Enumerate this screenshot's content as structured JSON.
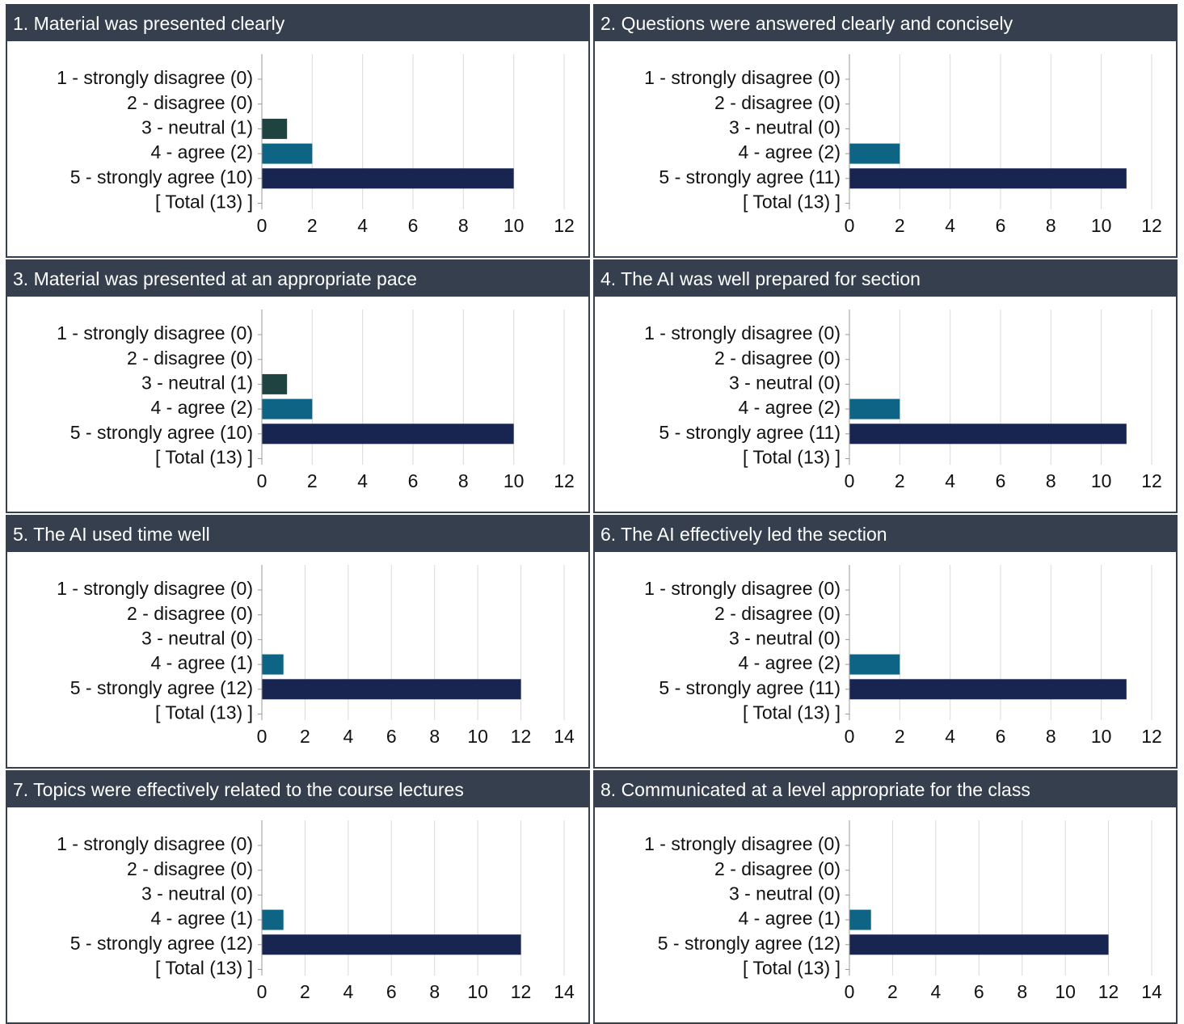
{
  "colors": {
    "header_bg": "#353f4d",
    "header_text": "#ffffff",
    "bar_neutral": "#1e4341",
    "bar_agree": "#0e6484",
    "bar_strongly_agree": "#172550",
    "grid": "#d9d9d9"
  },
  "chart_data": [
    {
      "type": "bar",
      "orientation": "horizontal",
      "title": "1. Material was presented clearly",
      "categories": [
        "1 - strongly disagree (0)",
        "2 - disagree (0)",
        "3 - neutral (1)",
        "4 - agree (2)",
        "5 - strongly agree (10)",
        "[ Total (13) ]"
      ],
      "values": [
        0,
        0,
        1,
        2,
        10,
        null
      ],
      "xlim": [
        0,
        12
      ],
      "xticks": [
        "0",
        "2",
        "4",
        "6",
        "8",
        "10",
        "12"
      ],
      "grid": true
    },
    {
      "type": "bar",
      "orientation": "horizontal",
      "title": "2. Questions were answered clearly and concisely",
      "categories": [
        "1 - strongly disagree (0)",
        "2 - disagree (0)",
        "3 - neutral (0)",
        "4 - agree (2)",
        "5 - strongly agree (11)",
        "[ Total (13) ]"
      ],
      "values": [
        0,
        0,
        0,
        2,
        11,
        null
      ],
      "xlim": [
        0,
        12
      ],
      "xticks": [
        "0",
        "2",
        "4",
        "6",
        "8",
        "10",
        "12"
      ],
      "grid": true
    },
    {
      "type": "bar",
      "orientation": "horizontal",
      "title": "3. Material was presented at an appropriate pace",
      "categories": [
        "1 - strongly disagree (0)",
        "2 - disagree (0)",
        "3 - neutral (1)",
        "4 - agree (2)",
        "5 - strongly agree (10)",
        "[ Total (13) ]"
      ],
      "values": [
        0,
        0,
        1,
        2,
        10,
        null
      ],
      "xlim": [
        0,
        12
      ],
      "xticks": [
        "0",
        "2",
        "4",
        "6",
        "8",
        "10",
        "12"
      ],
      "grid": true
    },
    {
      "type": "bar",
      "orientation": "horizontal",
      "title": "4. The AI was well prepared for section",
      "categories": [
        "1 - strongly disagree (0)",
        "2 - disagree (0)",
        "3 - neutral (0)",
        "4 - agree (2)",
        "5 - strongly agree (11)",
        "[ Total (13) ]"
      ],
      "values": [
        0,
        0,
        0,
        2,
        11,
        null
      ],
      "xlim": [
        0,
        12
      ],
      "xticks": [
        "0",
        "2",
        "4",
        "6",
        "8",
        "10",
        "12"
      ],
      "grid": true
    },
    {
      "type": "bar",
      "orientation": "horizontal",
      "title": "5. The AI used time well",
      "categories": [
        "1 - strongly disagree (0)",
        "2 - disagree (0)",
        "3 - neutral (0)",
        "4 - agree (1)",
        "5 - strongly agree (12)",
        "[ Total (13) ]"
      ],
      "values": [
        0,
        0,
        0,
        1,
        12,
        null
      ],
      "xlim": [
        0,
        14
      ],
      "xticks": [
        "0",
        "2",
        "4",
        "6",
        "8",
        "10",
        "12",
        "14"
      ],
      "grid": true
    },
    {
      "type": "bar",
      "orientation": "horizontal",
      "title": "6. The AI effectively led the section",
      "categories": [
        "1 - strongly disagree (0)",
        "2 - disagree (0)",
        "3 - neutral (0)",
        "4 - agree (2)",
        "5 - strongly agree (11)",
        "[ Total (13) ]"
      ],
      "values": [
        0,
        0,
        0,
        2,
        11,
        null
      ],
      "xlim": [
        0,
        12
      ],
      "xticks": [
        "0",
        "2",
        "4",
        "6",
        "8",
        "10",
        "12"
      ],
      "grid": true
    },
    {
      "type": "bar",
      "orientation": "horizontal",
      "title": "7. Topics were effectively related to the course lectures",
      "categories": [
        "1 - strongly disagree (0)",
        "2 - disagree (0)",
        "3 - neutral (0)",
        "4 - agree (1)",
        "5 - strongly agree (12)",
        "[ Total (13) ]"
      ],
      "values": [
        0,
        0,
        0,
        1,
        12,
        null
      ],
      "xlim": [
        0,
        14
      ],
      "xticks": [
        "0",
        "2",
        "4",
        "6",
        "8",
        "10",
        "12",
        "14"
      ],
      "grid": true
    },
    {
      "type": "bar",
      "orientation": "horizontal",
      "title": "8. Communicated at a level appropriate for the class",
      "categories": [
        "1 - strongly disagree (0)",
        "2 - disagree (0)",
        "3 - neutral (0)",
        "4 - agree (1)",
        "5 - strongly agree (12)",
        "[ Total (13) ]"
      ],
      "values": [
        0,
        0,
        0,
        1,
        12,
        null
      ],
      "xlim": [
        0,
        14
      ],
      "xticks": [
        "0",
        "2",
        "4",
        "6",
        "8",
        "10",
        "12",
        "14"
      ],
      "grid": true
    }
  ]
}
